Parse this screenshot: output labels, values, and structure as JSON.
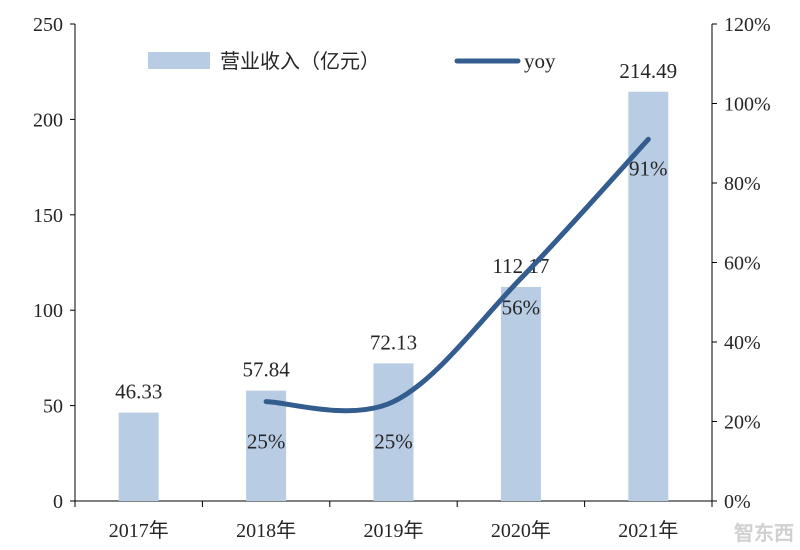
{
  "chart_data": {
    "type": "bar+line",
    "categories": [
      "2017年",
      "2018年",
      "2019年",
      "2020年",
      "2021年"
    ],
    "series": [
      {
        "name": "营业收入（亿元）",
        "type": "bar",
        "axis": "left",
        "values": [
          46.33,
          57.84,
          72.13,
          112.17,
          214.49
        ],
        "labels": [
          "46.33",
          "57.84",
          "72.13",
          "112.17",
          "214.49"
        ],
        "color": "#b8cce4"
      },
      {
        "name": "yoy",
        "type": "line",
        "axis": "right",
        "values": [
          null,
          25,
          25,
          56,
          91
        ],
        "labels": [
          null,
          "25%",
          "25%",
          "56%",
          "91%"
        ],
        "color": "#335c8f"
      }
    ],
    "left_axis": {
      "ylim": [
        0,
        250
      ],
      "ticks": [
        "0",
        "50",
        "100",
        "150",
        "200",
        "250"
      ]
    },
    "right_axis": {
      "ylim": [
        0,
        120
      ],
      "ticks": [
        "0%",
        "20%",
        "40%",
        "60%",
        "80%",
        "100%",
        "120%"
      ]
    },
    "legend": "top",
    "grid": false
  },
  "watermark": "智东西"
}
